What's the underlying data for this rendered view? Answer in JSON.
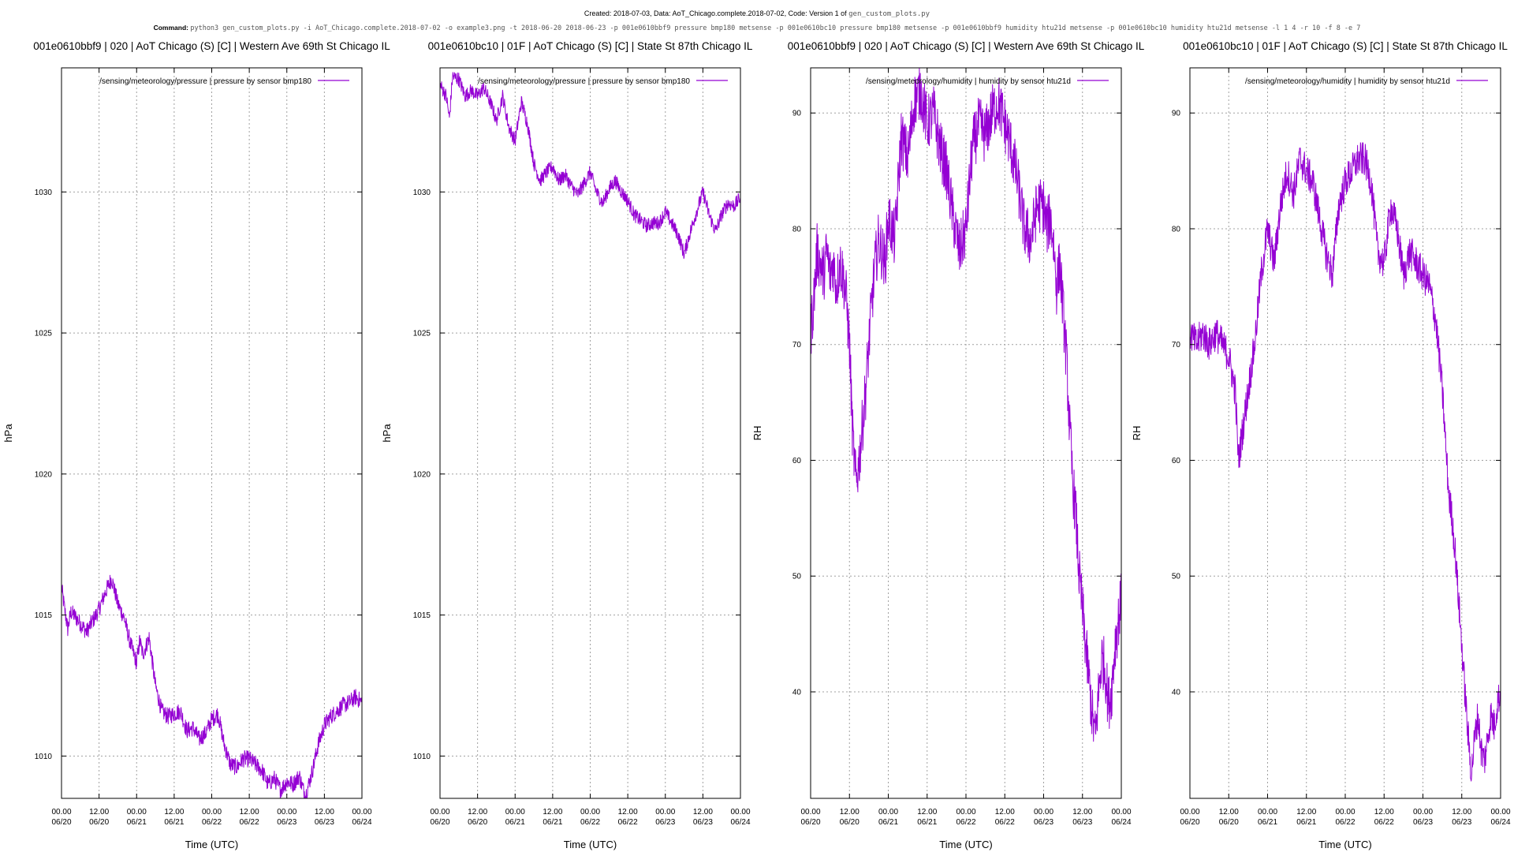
{
  "header": {
    "line1": "Created: 2018-07-03, Data: AoT_Chicago.complete.2018-07-02, Code: Version 1 of",
    "line1_code": "gen_custom_plots.py",
    "line2_label": "Command:",
    "line2_command": "python3 gen_custom_plots.py -i AoT_Chicago.complete.2018-07-02 -o example3.png -t 2018-06-20 2018-06-23 -p 001e0610bbf9 pressure bmp180 metsense -p 001e0610bc10 pressure bmp180 metsense -p 001e0610bbf9 humidity htu21d metsense -p 001e0610bc10 humidity htu21d metsense -l 1 4 -r 10 -f 8 -e 7"
  },
  "colors": {
    "series": "#9400d3",
    "grid": "#a0a0a0",
    "axis": "#000000"
  },
  "chart_data": [
    {
      "type": "line",
      "title": "001e0610bbf9 | 020 | AoT Chicago (S) [C] | Western Ave   69th St Chicago IL",
      "xlabel": "Time (UTC)",
      "ylabel": "hPa",
      "ylim": [
        1008.5,
        1034.4
      ],
      "yticks": [
        1010,
        1015,
        1020,
        1025,
        1030
      ],
      "xlim": [
        "2018-06-20 00:00",
        "2018-06-24 00:00"
      ],
      "xticks": [
        {
          "time": "00.00",
          "date": "06/20"
        },
        {
          "time": "12.00",
          "date": "06/20"
        },
        {
          "time": "00.00",
          "date": "06/21"
        },
        {
          "time": "12.00",
          "date": "06/21"
        },
        {
          "time": "00.00",
          "date": "06/22"
        },
        {
          "time": "12.00",
          "date": "06/22"
        },
        {
          "time": "00.00",
          "date": "06/23"
        },
        {
          "time": "12.00",
          "date": "06/23"
        },
        {
          "time": "00.00",
          "date": "06/24"
        }
      ],
      "grid": true,
      "legend_position": "top-right",
      "series": [
        {
          "name": "/sensing/meteorology/pressure | pressure by sensor bmp180",
          "x_hours": [
            0,
            1,
            2,
            3,
            4,
            6,
            8,
            10,
            12,
            14,
            16,
            18,
            20,
            22,
            24,
            25,
            26,
            28,
            30,
            32,
            34,
            36,
            38,
            40,
            42,
            44,
            46,
            48,
            50,
            52,
            54,
            56,
            58,
            60,
            62,
            64,
            66,
            68,
            70,
            72,
            74,
            76,
            77,
            78,
            80,
            82,
            84,
            86,
            88,
            90,
            92,
            94,
            96
          ],
          "values": [
            1016.0,
            1015.2,
            1014.5,
            1015.1,
            1015.0,
            1014.7,
            1014.4,
            1014.8,
            1015.2,
            1015.8,
            1016.3,
            1015.4,
            1014.9,
            1014.0,
            1013.3,
            1014.1,
            1013.6,
            1014.2,
            1012.5,
            1011.6,
            1011.4,
            1011.5,
            1011.6,
            1010.9,
            1011.0,
            1010.6,
            1010.8,
            1011.3,
            1011.5,
            1010.4,
            1009.7,
            1009.6,
            1009.9,
            1009.9,
            1009.7,
            1009.5,
            1009.0,
            1009.2,
            1008.8,
            1009.1,
            1009.0,
            1009.3,
            1008.9,
            1008.6,
            1009.4,
            1010.4,
            1011.1,
            1011.4,
            1011.6,
            1011.8,
            1011.9,
            1012.1,
            1011.9
          ],
          "noise": 0.3
        }
      ]
    },
    {
      "type": "line",
      "title": "001e0610bc10 | 01F | AoT Chicago (S) [C] | State St   87th Chicago IL",
      "xlabel": "Time (UTC)",
      "ylabel": "hPa",
      "ylim": [
        1008.5,
        1034.4
      ],
      "yticks": [
        1010,
        1015,
        1020,
        1025,
        1030
      ],
      "xlim": [
        "2018-06-20 00:00",
        "2018-06-24 00:00"
      ],
      "xticks": [
        {
          "time": "00.00",
          "date": "06/20"
        },
        {
          "time": "12.00",
          "date": "06/20"
        },
        {
          "time": "00.00",
          "date": "06/21"
        },
        {
          "time": "12.00",
          "date": "06/21"
        },
        {
          "time": "00.00",
          "date": "06/22"
        },
        {
          "time": "12.00",
          "date": "06/22"
        },
        {
          "time": "00.00",
          "date": "06/23"
        },
        {
          "time": "12.00",
          "date": "06/23"
        },
        {
          "time": "00.00",
          "date": "06/24"
        }
      ],
      "grid": true,
      "legend_position": "top-right",
      "series": [
        {
          "name": "/sensing/meteorology/pressure | pressure by sensor bmp180",
          "x_hours": [
            0,
            2,
            3,
            4,
            6,
            8,
            10,
            12,
            14,
            16,
            17,
            18,
            20,
            22,
            24,
            26,
            28,
            30,
            32,
            34,
            36,
            38,
            40,
            42,
            44,
            46,
            48,
            50,
            52,
            54,
            56,
            58,
            60,
            62,
            64,
            66,
            68,
            70,
            72,
            74,
            76,
            78,
            80,
            82,
            84,
            86,
            88,
            90,
            92,
            94,
            96
          ],
          "values": [
            1033.8,
            1033.4,
            1032.6,
            1034.1,
            1034.0,
            1033.4,
            1033.6,
            1033.4,
            1033.7,
            1033.2,
            1032.9,
            1032.5,
            1033.4,
            1032.3,
            1031.8,
            1033.2,
            1032.4,
            1031.0,
            1030.4,
            1030.7,
            1030.9,
            1030.4,
            1030.6,
            1030.2,
            1029.9,
            1030.3,
            1030.7,
            1030.0,
            1029.6,
            1030.1,
            1030.4,
            1030.0,
            1029.7,
            1029.2,
            1029.0,
            1028.8,
            1028.9,
            1028.9,
            1029.3,
            1028.9,
            1028.5,
            1027.8,
            1028.6,
            1029.3,
            1030.0,
            1029.2,
            1028.6,
            1029.2,
            1029.6,
            1029.5,
            1029.8
          ],
          "noise": 0.25
        }
      ]
    },
    {
      "type": "line",
      "title": "001e0610bbf9 | 020 | AoT Chicago (S) [C] | Western Ave   69th St Chicago IL",
      "xlabel": "Time (UTC)",
      "ylabel": "RH",
      "ylim": [
        30.8,
        93.9
      ],
      "yticks": [
        40,
        50,
        60,
        70,
        80,
        90
      ],
      "xlim": [
        "2018-06-20 00:00",
        "2018-06-24 00:00"
      ],
      "xticks": [
        {
          "time": "00.00",
          "date": "06/20"
        },
        {
          "time": "12.00",
          "date": "06/20"
        },
        {
          "time": "00.00",
          "date": "06/21"
        },
        {
          "time": "12.00",
          "date": "06/21"
        },
        {
          "time": "00.00",
          "date": "06/22"
        },
        {
          "time": "12.00",
          "date": "06/22"
        },
        {
          "time": "00.00",
          "date": "06/23"
        },
        {
          "time": "12.00",
          "date": "06/23"
        },
        {
          "time": "00.00",
          "date": "06/24"
        }
      ],
      "grid": true,
      "legend_position": "top-right",
      "series": [
        {
          "name": "/sensing/meteorology/humidity | humidity by sensor htu21d",
          "x_hours": [
            0,
            1,
            2,
            3,
            4,
            5,
            6,
            7,
            8,
            9,
            10,
            11,
            12,
            13,
            14,
            15,
            16,
            17,
            18,
            19,
            20,
            21,
            22,
            23,
            24,
            26,
            28,
            30,
            32,
            34,
            36,
            38,
            40,
            42,
            44,
            46,
            48,
            50,
            52,
            54,
            56,
            58,
            60,
            62,
            64,
            66,
            68,
            70,
            72,
            73,
            74,
            75,
            76,
            77,
            78,
            79,
            80,
            81,
            82,
            83,
            84,
            85,
            86,
            87,
            88,
            89,
            90,
            91,
            92,
            93,
            94,
            95,
            96
          ],
          "values": [
            71.0,
            74.0,
            78.0,
            77.0,
            76.0,
            78.0,
            76.0,
            77.0,
            75.0,
            77.0,
            76.0,
            74.0,
            70.0,
            62.0,
            58.0,
            60.0,
            63.0,
            66.0,
            70.0,
            74.0,
            77.0,
            79.0,
            78.0,
            77.0,
            81.0,
            79.0,
            88.0,
            86.0,
            91.0,
            92.0,
            89.0,
            90.0,
            87.0,
            85.0,
            81.0,
            78.0,
            80.0,
            87.0,
            89.0,
            88.0,
            90.0,
            91.0,
            89.0,
            87.0,
            84.0,
            80.0,
            79.0,
            82.0,
            82.0,
            80.0,
            81.0,
            79.0,
            75.0,
            77.0,
            73.0,
            69.0,
            63.0,
            58.0,
            55.0,
            50.0,
            47.0,
            44.0,
            41.0,
            38.0,
            36.0,
            40.0,
            43.0,
            42.0,
            39.0,
            40.0,
            44.0,
            46.0,
            48.0
          ],
          "noise": 2.5
        }
      ]
    },
    {
      "type": "line",
      "title": "001e0610bc10 | 01F | AoT Chicago (S) [C] | State St   87th Chicago IL",
      "xlabel": "Time (UTC)",
      "ylabel": "RH",
      "ylim": [
        30.8,
        93.9
      ],
      "yticks": [
        40,
        50,
        60,
        70,
        80,
        90
      ],
      "xlim": [
        "2018-06-20 00:00",
        "2018-06-24 00:00"
      ],
      "xticks": [
        {
          "time": "00.00",
          "date": "06/20"
        },
        {
          "time": "12.00",
          "date": "06/20"
        },
        {
          "time": "00.00",
          "date": "06/21"
        },
        {
          "time": "12.00",
          "date": "06/21"
        },
        {
          "time": "00.00",
          "date": "06/22"
        },
        {
          "time": "12.00",
          "date": "06/22"
        },
        {
          "time": "00.00",
          "date": "06/23"
        },
        {
          "time": "12.00",
          "date": "06/23"
        },
        {
          "time": "00.00",
          "date": "06/24"
        }
      ],
      "grid": true,
      "legend_position": "top-right",
      "series": [
        {
          "name": "/sensing/meteorology/humidity | humidity by sensor htu21d",
          "x_hours": [
            0,
            2,
            4,
            6,
            8,
            10,
            12,
            14,
            15,
            16,
            17,
            18,
            20,
            22,
            24,
            26,
            28,
            30,
            32,
            34,
            36,
            38,
            40,
            42,
            44,
            46,
            48,
            50,
            52,
            54,
            56,
            58,
            60,
            62,
            64,
            66,
            68,
            70,
            72,
            74,
            76,
            78,
            80,
            81,
            82,
            83,
            84,
            85,
            86,
            87,
            88,
            89,
            90,
            91,
            92,
            93,
            94,
            95,
            96
          ],
          "values": [
            71.0,
            70.0,
            71.0,
            70.0,
            71.0,
            70.0,
            69.0,
            66.0,
            60.0,
            62.0,
            64.0,
            66.0,
            70.0,
            76.0,
            80.0,
            77.0,
            82.0,
            85.0,
            83.0,
            86.0,
            85.0,
            84.0,
            81.0,
            78.0,
            76.0,
            82.0,
            84.0,
            85.0,
            86.0,
            86.0,
            84.0,
            78.0,
            77.0,
            82.0,
            80.0,
            76.0,
            78.0,
            77.0,
            76.0,
            75.0,
            72.0,
            66.0,
            57.0,
            55.0,
            52.0,
            48.0,
            44.0,
            40.0,
            36.0,
            33.0,
            36.0,
            38.0,
            35.0,
            34.0,
            36.0,
            38.0,
            37.0,
            39.0,
            40.0
          ],
          "noise": 1.5
        }
      ]
    }
  ]
}
